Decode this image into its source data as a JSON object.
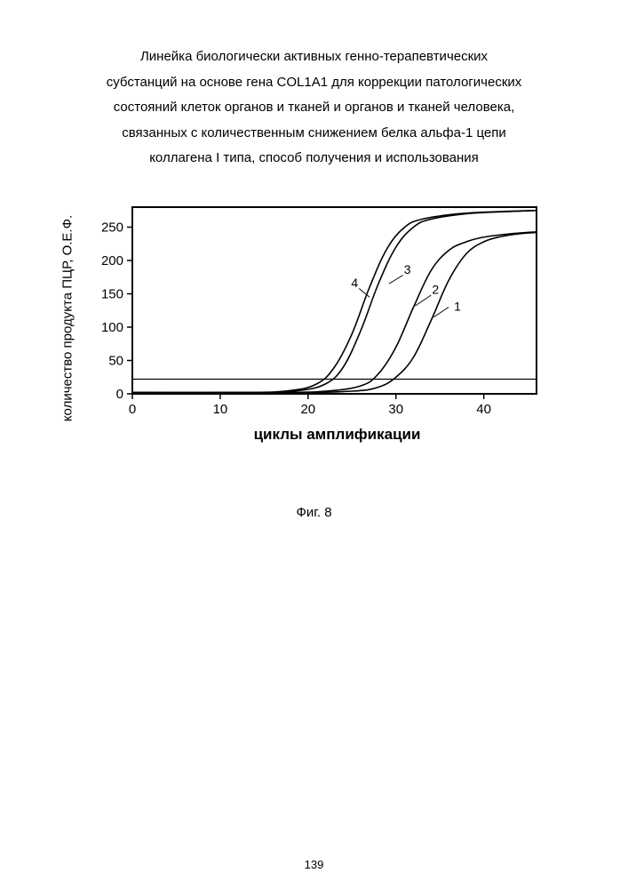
{
  "title_lines": [
    "Линейка биологически активных генно-терапевтических",
    "субстанций на основе гена COL1A1 для коррекции патологических",
    "состояний клеток органов и тканей и органов и тканей человека,",
    "связанных с количественным снижением белка альфа-1 цепи",
    "коллагена I типа, способ получения и использования"
  ],
  "chart": {
    "type": "line",
    "x_label": "циклы амплификации",
    "y_label": "количество продукта ПЦР, О.Е.Ф.",
    "xlim": [
      0,
      46
    ],
    "ylim": [
      0,
      280
    ],
    "xtick_step": 10,
    "ytick_step": 50,
    "xticks": [
      0,
      10,
      20,
      30,
      40
    ],
    "yticks": [
      0,
      50,
      100,
      150,
      200,
      250
    ],
    "threshold_y": 22,
    "line_color": "#000000",
    "background_color": "#ffffff",
    "axis_width": 2,
    "curve_width": 1.6,
    "tick_fontsize": 15,
    "label_fontsize": 15,
    "series": [
      {
        "label": "1",
        "label_pos": {
          "x": 37,
          "y": 125
        },
        "leader": {
          "from": {
            "x": 36,
            "y": 130
          },
          "to": {
            "x": 34.3,
            "y": 115
          }
        },
        "points": [
          {
            "x": 0,
            "y": 2
          },
          {
            "x": 18,
            "y": 2
          },
          {
            "x": 25,
            "y": 4
          },
          {
            "x": 28,
            "y": 10
          },
          {
            "x": 30,
            "y": 25
          },
          {
            "x": 32,
            "y": 55
          },
          {
            "x": 34,
            "y": 110
          },
          {
            "x": 36,
            "y": 170
          },
          {
            "x": 38,
            "y": 210
          },
          {
            "x": 40,
            "y": 228
          },
          {
            "x": 42,
            "y": 236
          },
          {
            "x": 44,
            "y": 240
          },
          {
            "x": 46,
            "y": 242
          }
        ]
      },
      {
        "label": "2",
        "label_pos": {
          "x": 34.5,
          "y": 150
        },
        "leader": {
          "from": {
            "x": 34,
            "y": 148
          },
          "to": {
            "x": 32.2,
            "y": 132
          }
        },
        "points": [
          {
            "x": 0,
            "y": 2
          },
          {
            "x": 16,
            "y": 2
          },
          {
            "x": 22,
            "y": 4
          },
          {
            "x": 26,
            "y": 12
          },
          {
            "x": 28,
            "y": 30
          },
          {
            "x": 30,
            "y": 70
          },
          {
            "x": 32,
            "y": 130
          },
          {
            "x": 34,
            "y": 185
          },
          {
            "x": 36,
            "y": 215
          },
          {
            "x": 38,
            "y": 228
          },
          {
            "x": 40,
            "y": 235
          },
          {
            "x": 43,
            "y": 240
          },
          {
            "x": 46,
            "y": 243
          }
        ]
      },
      {
        "label": "3",
        "label_pos": {
          "x": 31.3,
          "y": 180
        },
        "leader": {
          "from": {
            "x": 30.8,
            "y": 178
          },
          "to": {
            "x": 29.2,
            "y": 165
          }
        },
        "points": [
          {
            "x": 0,
            "y": 2
          },
          {
            "x": 14,
            "y": 2
          },
          {
            "x": 19,
            "y": 5
          },
          {
            "x": 22,
            "y": 15
          },
          {
            "x": 24,
            "y": 40
          },
          {
            "x": 26,
            "y": 95
          },
          {
            "x": 28,
            "y": 165
          },
          {
            "x": 30,
            "y": 220
          },
          {
            "x": 32,
            "y": 250
          },
          {
            "x": 34,
            "y": 262
          },
          {
            "x": 38,
            "y": 270
          },
          {
            "x": 42,
            "y": 273
          },
          {
            "x": 46,
            "y": 275
          }
        ]
      },
      {
        "label": "4",
        "label_pos": {
          "x": 25.3,
          "y": 160
        },
        "leader": {
          "from": {
            "x": 25.8,
            "y": 158
          },
          "to": {
            "x": 27.0,
            "y": 145
          }
        },
        "points": [
          {
            "x": 0,
            "y": 2
          },
          {
            "x": 13,
            "y": 2
          },
          {
            "x": 18,
            "y": 5
          },
          {
            "x": 21,
            "y": 15
          },
          {
            "x": 23,
            "y": 40
          },
          {
            "x": 25,
            "y": 90
          },
          {
            "x": 27,
            "y": 160
          },
          {
            "x": 29,
            "y": 218
          },
          {
            "x": 31,
            "y": 250
          },
          {
            "x": 33,
            "y": 262
          },
          {
            "x": 37,
            "y": 270
          },
          {
            "x": 41,
            "y": 273
          },
          {
            "x": 46,
            "y": 275
          }
        ]
      }
    ]
  },
  "figure_caption": "Фиг. 8",
  "page_number": "139"
}
